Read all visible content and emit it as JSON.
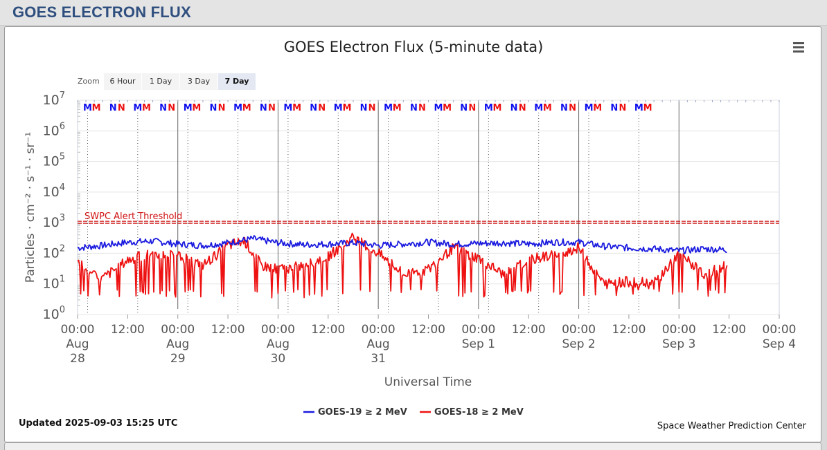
{
  "page_title": "GOES ELECTRON FLUX",
  "zoom": {
    "label": "Zoom",
    "buttons": [
      {
        "label": "6 Hour",
        "active": false
      },
      {
        "label": "1 Day",
        "active": false
      },
      {
        "label": "3 Day",
        "active": false
      },
      {
        "label": "7 Day",
        "active": true
      }
    ]
  },
  "menu_icon": "hamburger-menu-icon",
  "updated": "Updated 2025-09-03 15:25 UTC",
  "credit": "Space Weather Prediction Center",
  "chart_data": {
    "type": "line",
    "title": "GOES Electron Flux (5-minute data)",
    "xlabel": "Universal Time",
    "ylabel": "Particles · cm⁻² · s⁻¹ · sr⁻¹",
    "y_scale": "log",
    "ylim_exponents": [
      0,
      7
    ],
    "y_tick_exponents": [
      0,
      1,
      2,
      3,
      4,
      5,
      6,
      7
    ],
    "xlim_hours": [
      0,
      168
    ],
    "x_ticks": [
      {
        "line1": "00:00",
        "line2": "Aug",
        "line3": "28"
      },
      {
        "line1": "12:00",
        "line2": "",
        "line3": ""
      },
      {
        "line1": "00:00",
        "line2": "Aug",
        "line3": "29"
      },
      {
        "line1": "12:00",
        "line2": "",
        "line3": ""
      },
      {
        "line1": "00:00",
        "line2": "Aug",
        "line3": "30"
      },
      {
        "line1": "12:00",
        "line2": "",
        "line3": ""
      },
      {
        "line1": "00:00",
        "line2": "Aug",
        "line3": "31"
      },
      {
        "line1": "12:00",
        "line2": "",
        "line3": ""
      },
      {
        "line1": "00:00",
        "line2": "Sep 1",
        "line3": ""
      },
      {
        "line1": "12:00",
        "line2": "",
        "line3": ""
      },
      {
        "line1": "00:00",
        "line2": "Sep 2",
        "line3": ""
      },
      {
        "line1": "12:00",
        "line2": "",
        "line3": ""
      },
      {
        "line1": "00:00",
        "line2": "Sep 3",
        "line3": ""
      },
      {
        "line1": "12:00",
        "line2": "",
        "line3": ""
      },
      {
        "line1": "00:00",
        "line2": "Sep 4",
        "line3": ""
      }
    ],
    "threshold": {
      "label": "SWPC Alert Threshold",
      "value": 1000
    },
    "markers": [
      {
        "letter": "M",
        "hour": 2.4,
        "color": "#1010ee"
      },
      {
        "letter": "M",
        "hour": 4.5,
        "color": "#ee1010"
      },
      {
        "letter": "N",
        "hour": 8.5,
        "color": "#1010ee"
      },
      {
        "letter": "N",
        "hour": 10.5,
        "color": "#ee1010"
      },
      {
        "letter": "M",
        "hour": 14.4,
        "color": "#1010ee"
      },
      {
        "letter": "M",
        "hour": 16.5,
        "color": "#ee1010"
      },
      {
        "letter": "N",
        "hour": 20.5,
        "color": "#1010ee"
      },
      {
        "letter": "N",
        "hour": 22.5,
        "color": "#ee1010"
      },
      {
        "letter": "M",
        "hour": 26.4,
        "color": "#1010ee"
      },
      {
        "letter": "M",
        "hour": 28.5,
        "color": "#ee1010"
      },
      {
        "letter": "N",
        "hour": 32.5,
        "color": "#1010ee"
      },
      {
        "letter": "N",
        "hour": 34.5,
        "color": "#ee1010"
      },
      {
        "letter": "M",
        "hour": 38.4,
        "color": "#1010ee"
      },
      {
        "letter": "M",
        "hour": 40.5,
        "color": "#ee1010"
      },
      {
        "letter": "N",
        "hour": 44.5,
        "color": "#1010ee"
      },
      {
        "letter": "N",
        "hour": 46.5,
        "color": "#ee1010"
      },
      {
        "letter": "M",
        "hour": 50.4,
        "color": "#1010ee"
      },
      {
        "letter": "M",
        "hour": 52.5,
        "color": "#ee1010"
      },
      {
        "letter": "N",
        "hour": 56.5,
        "color": "#1010ee"
      },
      {
        "letter": "N",
        "hour": 58.5,
        "color": "#ee1010"
      },
      {
        "letter": "M",
        "hour": 62.4,
        "color": "#1010ee"
      },
      {
        "letter": "M",
        "hour": 64.5,
        "color": "#ee1010"
      },
      {
        "letter": "N",
        "hour": 68.5,
        "color": "#1010ee"
      },
      {
        "letter": "N",
        "hour": 70.5,
        "color": "#ee1010"
      },
      {
        "letter": "M",
        "hour": 74.4,
        "color": "#1010ee"
      },
      {
        "letter": "M",
        "hour": 76.5,
        "color": "#ee1010"
      },
      {
        "letter": "N",
        "hour": 80.5,
        "color": "#1010ee"
      },
      {
        "letter": "N",
        "hour": 82.5,
        "color": "#ee1010"
      },
      {
        "letter": "M",
        "hour": 86.4,
        "color": "#1010ee"
      },
      {
        "letter": "M",
        "hour": 88.5,
        "color": "#ee1010"
      },
      {
        "letter": "N",
        "hour": 92.5,
        "color": "#1010ee"
      },
      {
        "letter": "N",
        "hour": 94.5,
        "color": "#ee1010"
      },
      {
        "letter": "M",
        "hour": 98.4,
        "color": "#1010ee"
      },
      {
        "letter": "M",
        "hour": 100.5,
        "color": "#ee1010"
      },
      {
        "letter": "N",
        "hour": 104.5,
        "color": "#1010ee"
      },
      {
        "letter": "N",
        "hour": 106.5,
        "color": "#ee1010"
      },
      {
        "letter": "M",
        "hour": 110.4,
        "color": "#1010ee"
      },
      {
        "letter": "M",
        "hour": 112.5,
        "color": "#ee1010"
      },
      {
        "letter": "N",
        "hour": 116.5,
        "color": "#1010ee"
      },
      {
        "letter": "N",
        "hour": 118.5,
        "color": "#ee1010"
      },
      {
        "letter": "M",
        "hour": 122.4,
        "color": "#1010ee"
      },
      {
        "letter": "M",
        "hour": 124.5,
        "color": "#ee1010"
      },
      {
        "letter": "N",
        "hour": 128.5,
        "color": "#1010ee"
      },
      {
        "letter": "N",
        "hour": 130.5,
        "color": "#ee1010"
      },
      {
        "letter": "M",
        "hour": 134.4,
        "color": "#1010ee"
      },
      {
        "letter": "M",
        "hour": 136.5,
        "color": "#ee1010"
      }
    ],
    "dotted_line_hours": [
      2.4,
      14.4,
      26.4,
      38.4,
      50.4,
      62.4,
      74.4,
      86.4,
      98.4,
      110.4,
      122.4,
      134.4
    ],
    "series": [
      {
        "name": "GOES-19 ≥ 2 MeV",
        "color": "#1a1adf",
        "hours": [
          0,
          6,
          12,
          18,
          24,
          30,
          36,
          42,
          48,
          54,
          60,
          66,
          72,
          78,
          84,
          90,
          96,
          102,
          108,
          114,
          120,
          126,
          132,
          138,
          144,
          150,
          155.5
        ],
        "values": [
          150,
          180,
          230,
          250,
          200,
          180,
          220,
          300,
          220,
          190,
          200,
          220,
          180,
          200,
          230,
          200,
          210,
          220,
          200,
          230,
          230,
          170,
          150,
          140,
          120,
          140,
          130
        ]
      },
      {
        "name": "GOES-18 ≥ 2 MeV",
        "color": "#ee1111",
        "hours": [
          0,
          3,
          6,
          9,
          12,
          18,
          24,
          30,
          36,
          40,
          44,
          48,
          54,
          60,
          66,
          72,
          78,
          84,
          90,
          96,
          102,
          108,
          114,
          120,
          126,
          132,
          138,
          144,
          150,
          155.5
        ],
        "values": [
          60,
          20,
          15,
          30,
          60,
          100,
          80,
          40,
          180,
          250,
          40,
          30,
          40,
          80,
          330,
          100,
          20,
          30,
          150,
          70,
          20,
          60,
          90,
          150,
          10,
          12,
          10,
          100,
          20,
          40
        ]
      }
    ],
    "legend_position": "bottom-center"
  }
}
